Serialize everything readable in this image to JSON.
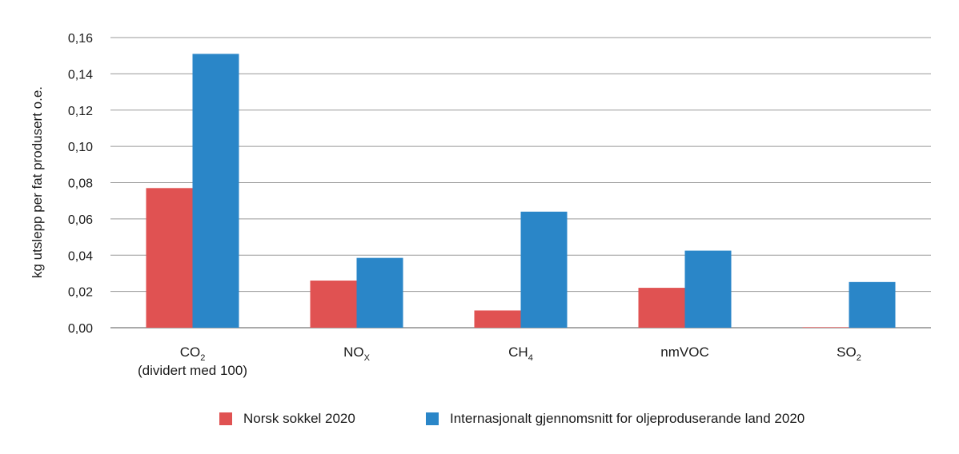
{
  "chart_data": {
    "type": "bar",
    "ylabel": "kg utslepp per fat produsert o.e.",
    "ylim": [
      0,
      0.16
    ],
    "yticks": [
      "0,00",
      "0,02",
      "0,04",
      "0,06",
      "0,08",
      "0,10",
      "0,12",
      "0,14",
      "0,16"
    ],
    "categories": [
      {
        "main": "CO",
        "sub": "2",
        "line2": "(dividert med 100)"
      },
      {
        "main": "NO",
        "sub": "X",
        "line2": ""
      },
      {
        "main": "CH",
        "sub": "4",
        "line2": ""
      },
      {
        "main": "nmVOC",
        "sub": "",
        "line2": ""
      },
      {
        "main": "SO",
        "sub": "2",
        "line2": ""
      }
    ],
    "series": [
      {
        "name": "Norsk sokkel 2020",
        "color": "#e05252",
        "values": [
          0.077,
          0.026,
          0.0095,
          0.022,
          0.0003
        ]
      },
      {
        "name": "Internasjonalt gjennomsnitt for oljeproduserande land 2020",
        "color": "#2a86c8",
        "values": [
          0.151,
          0.0385,
          0.064,
          0.0425,
          0.0252
        ]
      }
    ],
    "grid": true,
    "legend_position": "bottom-center"
  }
}
